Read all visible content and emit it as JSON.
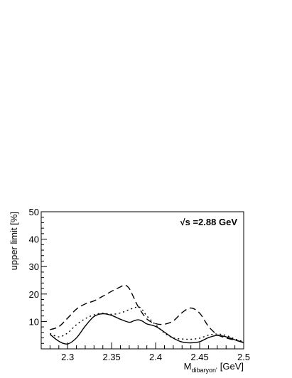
{
  "chart_data": {
    "type": "line",
    "title": "",
    "annotation": {
      "root_symbol": "√",
      "text": "s =2.88 GeV"
    },
    "xlabel": {
      "main": "M",
      "subscript": "dibaryon'",
      "unit": "[GeV]"
    },
    "ylabel": "upper limit [%]",
    "xlim": [
      2.27,
      2.5
    ],
    "ylim": [
      0,
      50
    ],
    "x_ticks": [
      2.3,
      2.35,
      2.4,
      2.45,
      2.5
    ],
    "x_tick_labels": [
      "2.3",
      "2.35",
      "2.4",
      "2.45",
      "2.5"
    ],
    "y_ticks": [
      10,
      20,
      30,
      40,
      50
    ],
    "y_tick_labels": [
      "10",
      "20",
      "30",
      "40",
      "50"
    ],
    "grid": false,
    "legend": "none",
    "series": [
      {
        "style": "solid",
        "x": [
          2.28,
          2.29,
          2.3,
          2.31,
          2.32,
          2.33,
          2.34,
          2.35,
          2.36,
          2.37,
          2.375,
          2.38,
          2.385,
          2.39,
          2.4,
          2.41,
          2.42,
          2.43,
          2.44,
          2.45,
          2.46,
          2.47,
          2.48,
          2.49,
          2.5
        ],
        "y": [
          5.3,
          2.8,
          1.8,
          4.0,
          8.3,
          11.8,
          12.8,
          12.2,
          10.8,
          9.7,
          10.2,
          10.6,
          10.1,
          9.1,
          8.2,
          6.1,
          3.9,
          2.5,
          2.2,
          2.6,
          4.1,
          4.9,
          4.4,
          3.3,
          2.2
        ]
      },
      {
        "style": "dotted",
        "x": [
          2.28,
          2.29,
          2.3,
          2.31,
          2.32,
          2.33,
          2.34,
          2.35,
          2.36,
          2.37,
          2.38,
          2.385,
          2.39,
          2.4,
          2.41,
          2.42,
          2.43,
          2.44,
          2.45,
          2.46,
          2.47,
          2.48,
          2.49,
          2.5
        ],
        "y": [
          5.6,
          4.4,
          5.8,
          8.8,
          11.0,
          12.4,
          13.0,
          12.6,
          13.1,
          14.3,
          15.3,
          14.2,
          12.0,
          8.8,
          5.8,
          4.0,
          3.6,
          3.5,
          3.9,
          5.0,
          5.4,
          4.9,
          3.6,
          2.6
        ]
      },
      {
        "style": "dashed",
        "x": [
          2.28,
          2.29,
          2.3,
          2.31,
          2.32,
          2.33,
          2.34,
          2.35,
          2.36,
          2.365,
          2.37,
          2.375,
          2.38,
          2.39,
          2.4,
          2.41,
          2.42,
          2.43,
          2.44,
          2.45,
          2.46,
          2.47,
          2.48,
          2.49,
          2.5
        ],
        "y": [
          7.0,
          8.1,
          11.2,
          14.5,
          16.4,
          17.5,
          19.2,
          21.0,
          22.6,
          23.3,
          22.0,
          18.8,
          15.5,
          10.9,
          9.2,
          9.0,
          10.2,
          13.2,
          14.9,
          13.0,
          8.2,
          5.2,
          4.0,
          3.2,
          2.4
        ]
      }
    ]
  }
}
